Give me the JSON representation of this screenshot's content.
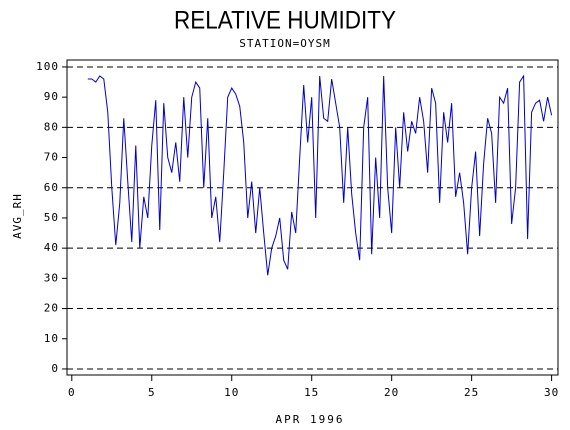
{
  "chart_data": {
    "type": "line",
    "title": "RELATIVE HUMIDITY",
    "subtitle": "STATION=OYSM",
    "x_label": "APR 1996",
    "y_label": "AVG_RH",
    "xlim": [
      -0.3,
      30.4
    ],
    "ylim": [
      -2,
      102.3
    ],
    "xticks": [
      0,
      5,
      10,
      15,
      20,
      25,
      30
    ],
    "yticks": [
      0,
      10,
      20,
      30,
      40,
      50,
      60,
      70,
      80,
      90,
      100
    ],
    "grid_lines": [
      0,
      20,
      40,
      60,
      80,
      100
    ],
    "color": "#0000cc",
    "x": [
      1,
      1.25,
      1.5,
      1.75,
      2,
      2.25,
      2.5,
      2.75,
      3,
      3.25,
      3.5,
      3.75,
      4,
      4.25,
      4.5,
      4.75,
      5,
      5.25,
      5.5,
      5.75,
      6,
      6.25,
      6.5,
      6.75,
      7,
      7.25,
      7.5,
      7.75,
      8,
      8.25,
      8.5,
      8.75,
      9,
      9.25,
      9.5,
      9.75,
      10,
      10.25,
      10.5,
      10.75,
      11,
      11.25,
      11.5,
      11.75,
      12,
      12.25,
      12.5,
      12.75,
      13,
      13.25,
      13.5,
      13.75,
      14,
      14.25,
      14.5,
      14.75,
      15,
      15.25,
      15.5,
      15.75,
      16,
      16.25,
      16.5,
      16.75,
      17,
      17.25,
      17.5,
      17.75,
      18,
      18.25,
      18.5,
      18.75,
      19,
      19.25,
      19.5,
      19.75,
      20,
      20.25,
      20.5,
      20.75,
      21,
      21.25,
      21.5,
      21.75,
      22,
      22.25,
      22.5,
      22.75,
      23,
      23.25,
      23.5,
      23.75,
      24,
      24.25,
      24.5,
      24.75,
      25,
      25.25,
      25.5,
      25.75,
      26,
      26.25,
      26.5,
      26.75,
      27,
      27.25,
      27.5,
      27.75,
      28,
      28.25,
      28.5,
      28.75,
      29,
      29.25,
      29.5,
      29.75,
      30
    ],
    "values": [
      96,
      96,
      95,
      97,
      96,
      85,
      60,
      41,
      55,
      83,
      62,
      42,
      74,
      40,
      57,
      50,
      74,
      89,
      46,
      88,
      70,
      65,
      75,
      62,
      90,
      70,
      90,
      95,
      93,
      60,
      83,
      50,
      57,
      42,
      65,
      90,
      93,
      91,
      87,
      75,
      50,
      62,
      45,
      60,
      45,
      31,
      40,
      44,
      50,
      36,
      33,
      52,
      45,
      70,
      94,
      75,
      90,
      50,
      97,
      83,
      82,
      96,
      88,
      80,
      55,
      80,
      58,
      45,
      36,
      80,
      90,
      38,
      70,
      50,
      97,
      60,
      45,
      80,
      60,
      85,
      72,
      82,
      78,
      90,
      82,
      65,
      93,
      88,
      55,
      85,
      75,
      88,
      57,
      65,
      55,
      38,
      60,
      72,
      44,
      68,
      83,
      78,
      55,
      90,
      88,
      93,
      48,
      60,
      95,
      97,
      43,
      85,
      88,
      89,
      82,
      90,
      84
    ]
  }
}
